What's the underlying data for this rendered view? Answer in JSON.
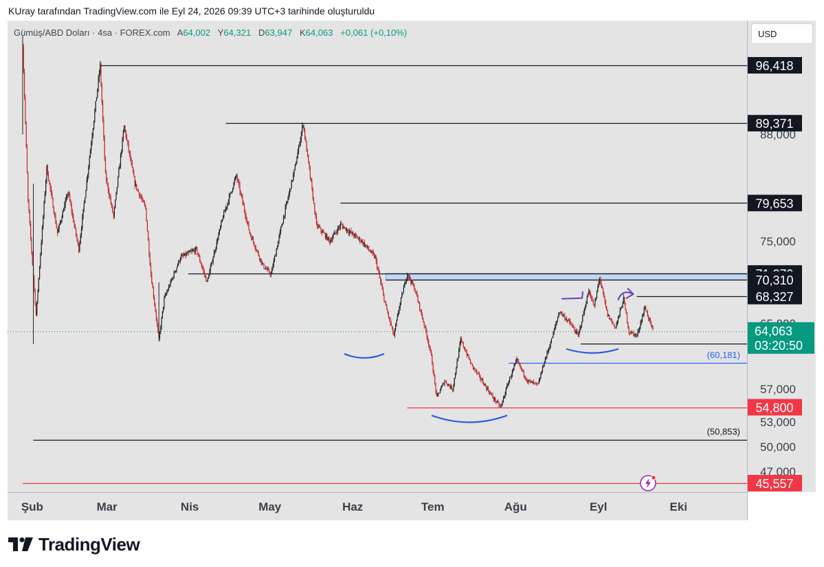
{
  "caption": "KUray tarafından TradingView.com ile Eyl 24, 2026 09:39 UTC+3 tarihinde oluşturuldu",
  "legend": {
    "symbol": "Gümüş/ABD Doları · 4sa · FOREX.com",
    "open_label": "A",
    "open": "64,002",
    "high_label": "Y",
    "high": "64,321",
    "low_label": "D",
    "low": "63,947",
    "close_label": "K",
    "close": "64,063",
    "change": "+0,061 (+0,10%)"
  },
  "currency_button": "USD",
  "logo_text": "TradingView",
  "colors": {
    "plot_bg": "#e4e4e4",
    "up": "#1f1f1f",
    "down": "#c2262b",
    "hline": "#131722",
    "blue_line": "#2962ff",
    "red_line": "#f23645",
    "current_price": "#089981",
    "zone": "#bcd3f0",
    "arc": "#2f5bdb",
    "purple": "#6a3cc2"
  },
  "chart_data": {
    "type": "candlestick",
    "x_tick_labels": [
      "Şub",
      "Mar",
      "Nis",
      "May",
      "Haz",
      "Tem",
      "Ağu",
      "Eyl",
      "Eki"
    ],
    "y_tick_labels": [
      "88,000",
      "75,000",
      "65,000",
      "57,000",
      "53,000",
      "50,000",
      "47,000"
    ],
    "ylim": [
      43.5,
      100.5
    ],
    "grid": false,
    "price_path": [
      {
        "date": "01-31",
        "price": 99
      },
      {
        "date": "02-02",
        "price": 80
      },
      {
        "date": "02-05",
        "price": 66
      },
      {
        "date": "02-09",
        "price": 84
      },
      {
        "date": "02-13",
        "price": 76
      },
      {
        "date": "02-17",
        "price": 81
      },
      {
        "date": "02-21",
        "price": 74
      },
      {
        "date": "02-26",
        "price": 88
      },
      {
        "date": "03-01",
        "price": 96.4
      },
      {
        "date": "03-03",
        "price": 83
      },
      {
        "date": "03-06",
        "price": 78
      },
      {
        "date": "03-10",
        "price": 89
      },
      {
        "date": "03-14",
        "price": 82
      },
      {
        "date": "03-18",
        "price": 79
      },
      {
        "date": "03-20",
        "price": 71
      },
      {
        "date": "03-23",
        "price": 63
      },
      {
        "date": "03-25",
        "price": 68
      },
      {
        "date": "03-31",
        "price": 73
      },
      {
        "date": "04-06",
        "price": 74
      },
      {
        "date": "04-10",
        "price": 70
      },
      {
        "date": "04-16",
        "price": 78
      },
      {
        "date": "04-21",
        "price": 83
      },
      {
        "date": "04-26",
        "price": 76
      },
      {
        "date": "05-01",
        "price": 72
      },
      {
        "date": "05-04",
        "price": 71
      },
      {
        "date": "05-08",
        "price": 77
      },
      {
        "date": "05-13",
        "price": 84
      },
      {
        "date": "05-16",
        "price": 89.4
      },
      {
        "date": "05-19",
        "price": 82
      },
      {
        "date": "05-21",
        "price": 77
      },
      {
        "date": "05-26",
        "price": 75
      },
      {
        "date": "05-30",
        "price": 77
      },
      {
        "date": "06-03",
        "price": 76
      },
      {
        "date": "06-07",
        "price": 75
      },
      {
        "date": "06-12",
        "price": 73
      },
      {
        "date": "06-16",
        "price": 67
      },
      {
        "date": "06-19",
        "price": 63.5
      },
      {
        "date": "06-21",
        "price": 67
      },
      {
        "date": "06-24",
        "price": 71.1
      },
      {
        "date": "06-27",
        "price": 69
      },
      {
        "date": "07-01",
        "price": 64
      },
      {
        "date": "07-03",
        "price": 61
      },
      {
        "date": "07-05",
        "price": 56
      },
      {
        "date": "07-08",
        "price": 58
      },
      {
        "date": "07-11",
        "price": 57
      },
      {
        "date": "07-14",
        "price": 63
      },
      {
        "date": "07-18",
        "price": 60
      },
      {
        "date": "07-22",
        "price": 58
      },
      {
        "date": "07-26",
        "price": 56
      },
      {
        "date": "07-29",
        "price": 54.8
      },
      {
        "date": "08-01",
        "price": 58
      },
      {
        "date": "08-04",
        "price": 60.5
      },
      {
        "date": "08-08",
        "price": 58
      },
      {
        "date": "08-12",
        "price": 57.5
      },
      {
        "date": "08-14",
        "price": 60
      },
      {
        "date": "08-17",
        "price": 63
      },
      {
        "date": "08-20",
        "price": 66.5
      },
      {
        "date": "08-24",
        "price": 65
      },
      {
        "date": "08-27",
        "price": 63.5
      },
      {
        "date": "08-31",
        "price": 69
      },
      {
        "date": "09-02",
        "price": 67
      },
      {
        "date": "09-04",
        "price": 70.6
      },
      {
        "date": "09-07",
        "price": 66
      },
      {
        "date": "09-10",
        "price": 64.5
      },
      {
        "date": "09-13",
        "price": 68
      },
      {
        "date": "09-15",
        "price": 64
      },
      {
        "date": "09-18",
        "price": 63.5
      },
      {
        "date": "09-21",
        "price": 67
      },
      {
        "date": "09-24",
        "price": 64.06
      }
    ],
    "horizontal_levels": [
      {
        "value": 96.418,
        "label": "96,418",
        "kind": "level",
        "from_date": "03-01"
      },
      {
        "value": 89.371,
        "label": "89,371",
        "kind": "level",
        "from_date": "04-17"
      },
      {
        "value": 79.653,
        "label": "79,653",
        "kind": "level",
        "from_date": "05-30"
      },
      {
        "value": 71.079,
        "label": "71,079",
        "kind": "level",
        "from_date": "04-03"
      },
      {
        "value": 70.31,
        "label": "70,310",
        "kind": "level",
        "from_date": "06-16"
      },
      {
        "value": 68.327,
        "label": "68,327",
        "kind": "level",
        "from_date": "09-18"
      },
      {
        "value": 62.57,
        "label": "62,570",
        "kind": "level",
        "from_date": "08-28"
      },
      {
        "value": 60.181,
        "label": "(60,181)",
        "kind": "blue",
        "from_date": "08-01"
      },
      {
        "value": 54.8,
        "label": "54,800",
        "kind": "red",
        "from_date": "06-24"
      },
      {
        "value": 50.853,
        "label": "(50,853)",
        "kind": "plain",
        "from_date": "02-04"
      },
      {
        "value": 45.557,
        "label": "45,557",
        "kind": "red",
        "from_date": "01-31"
      }
    ],
    "zone": {
      "from": 70.31,
      "to": 71.079,
      "from_date": "06-16"
    },
    "current_price": {
      "value": 64.063,
      "label": "64,063",
      "countdown": "03:20:50"
    }
  }
}
